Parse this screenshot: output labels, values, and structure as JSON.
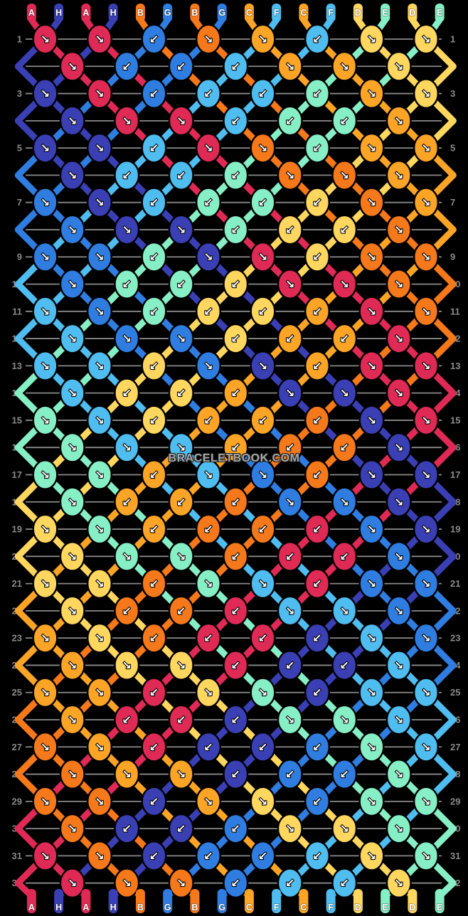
{
  "watermark": "BRACELETBOOK.COM",
  "ui": {
    "background": "#000000",
    "guide_line_color": "#8a8a8a",
    "row_number_color": "#8a8a8a",
    "arrow_color": "#ffffff",
    "knot_outline_color": "#000000",
    "label_text_color": "#ffffff"
  },
  "pattern": {
    "strand_count": 16,
    "row_count": 32,
    "strands_top": [
      "A",
      "H",
      "A",
      "H",
      "B",
      "G",
      "B",
      "G",
      "C",
      "F",
      "C",
      "F",
      "D",
      "E",
      "D",
      "E"
    ],
    "strands_bottom": [
      "A",
      "H",
      "A",
      "H",
      "B",
      "G",
      "B",
      "G",
      "C",
      "F",
      "C",
      "F",
      "D",
      "E",
      "D",
      "E"
    ],
    "colors": {
      "A": "#e02a56",
      "B": "#f5781a",
      "C": "#fba426",
      "D": "#ffd75f",
      "E": "#87efc6",
      "F": "#4fbdf0",
      "G": "#2f7de0",
      "H": "#3a3fb4"
    },
    "legend": {
      "dr": "forward knot ↘",
      "dl": "backward knot ↙"
    },
    "rows": [
      {
        "num": 1,
        "knots": [
          "A>",
          "A>",
          "G<",
          "B>",
          "C>",
          "F<",
          "D>",
          "D>"
        ]
      },
      {
        "num": 2,
        "knots": [
          "A>",
          "G<",
          "G<",
          "F<",
          "C>",
          "C>",
          "D>"
        ]
      },
      {
        "num": 3,
        "knots": [
          "H>",
          "A>",
          "G<",
          "F<",
          "F<",
          "E<",
          "C>",
          "D>"
        ]
      },
      {
        "num": 4,
        "knots": [
          "H>",
          "A>",
          "A>",
          "F<",
          "E<",
          "E<",
          "C>"
        ]
      },
      {
        "num": 5,
        "knots": [
          "H>",
          "H>",
          "F<",
          "A>",
          "B>",
          "E<",
          "C>",
          "C>"
        ]
      },
      {
        "num": 6,
        "knots": [
          "H>",
          "F<",
          "F<",
          "E<",
          "B>",
          "B>",
          "C>"
        ]
      },
      {
        "num": 7,
        "knots": [
          "G>",
          "H>",
          "F<",
          "E<",
          "E<",
          "D<",
          "B>",
          "C>"
        ]
      },
      {
        "num": 8,
        "knots": [
          "G>",
          "H>",
          "H>",
          "E<",
          "D<",
          "D<",
          "B>"
        ]
      },
      {
        "num": 9,
        "knots": [
          "G>",
          "G>",
          "E<",
          "H>",
          "A>",
          "D<",
          "B>",
          "B>"
        ]
      },
      {
        "num": 10,
        "knots": [
          "G>",
          "E<",
          "E<",
          "D<",
          "A>",
          "A>",
          "B>"
        ]
      },
      {
        "num": 11,
        "knots": [
          "F>",
          "G>",
          "E<",
          "D<",
          "D<",
          "C<",
          "A>",
          "B>"
        ]
      },
      {
        "num": 12,
        "knots": [
          "F>",
          "G>",
          "G>",
          "D<",
          "C<",
          "C<",
          "A>"
        ]
      },
      {
        "num": 13,
        "knots": [
          "F>",
          "F>",
          "D<",
          "G>",
          "H>",
          "C<",
          "A>",
          "A>"
        ]
      },
      {
        "num": 14,
        "knots": [
          "F>",
          "D<",
          "D<",
          "C<",
          "H>",
          "H>",
          "A>"
        ]
      },
      {
        "num": 15,
        "knots": [
          "E>",
          "F>",
          "D<",
          "C<",
          "C<",
          "B<",
          "H>",
          "A>"
        ]
      },
      {
        "num": 16,
        "knots": [
          "E>",
          "F>",
          "F>",
          "C<",
          "B<",
          "B<",
          "H>"
        ]
      },
      {
        "num": 17,
        "knots": [
          "E>",
          "E>",
          "C<",
          "F>",
          "G>",
          "B<",
          "H>",
          "H>"
        ]
      },
      {
        "num": 18,
        "knots": [
          "E>",
          "C<",
          "C<",
          "B<",
          "G>",
          "G>",
          "H>"
        ]
      },
      {
        "num": 19,
        "knots": [
          "D>",
          "E>",
          "C<",
          "B<",
          "B<",
          "A<",
          "G>",
          "H>"
        ]
      },
      {
        "num": 20,
        "knots": [
          "D>",
          "E>",
          "E>",
          "B<",
          "A<",
          "A<",
          "G>"
        ]
      },
      {
        "num": 21,
        "knots": [
          "D>",
          "D>",
          "B<",
          "E>",
          "F>",
          "A<",
          "G>",
          "G>"
        ]
      },
      {
        "num": 22,
        "knots": [
          "D>",
          "B<",
          "B<",
          "A<",
          "F>",
          "F>",
          "G>"
        ]
      },
      {
        "num": 23,
        "knots": [
          "C>",
          "D>",
          "B<",
          "A<",
          "A<",
          "H<",
          "F>",
          "G>"
        ]
      },
      {
        "num": 24,
        "knots": [
          "C>",
          "D>",
          "D>",
          "A<",
          "H<",
          "H<",
          "F>"
        ]
      },
      {
        "num": 25,
        "knots": [
          "C>",
          "C>",
          "A<",
          "D>",
          "E>",
          "H<",
          "F>",
          "F>"
        ]
      },
      {
        "num": 26,
        "knots": [
          "C>",
          "A<",
          "A<",
          "H<",
          "E>",
          "E>",
          "F>"
        ]
      },
      {
        "num": 27,
        "knots": [
          "B>",
          "C>",
          "A<",
          "H<",
          "H<",
          "G<",
          "E>",
          "F>"
        ]
      },
      {
        "num": 28,
        "knots": [
          "B>",
          "C>",
          "C>",
          "H<",
          "G<",
          "G<",
          "E>"
        ]
      },
      {
        "num": 29,
        "knots": [
          "B>",
          "B>",
          "H<",
          "C>",
          "D>",
          "G<",
          "E>",
          "E>"
        ]
      },
      {
        "num": 30,
        "knots": [
          "B>",
          "H<",
          "H<",
          "G<",
          "D>",
          "D>",
          "E>"
        ]
      },
      {
        "num": 31,
        "knots": [
          "A>",
          "B>",
          "H<",
          "G<",
          "G<",
          "F<",
          "D>",
          "E>"
        ]
      },
      {
        "num": 32,
        "knots": [
          "A>",
          "B>",
          "B>",
          "G<",
          "F<",
          "F<",
          "D>"
        ]
      }
    ]
  }
}
